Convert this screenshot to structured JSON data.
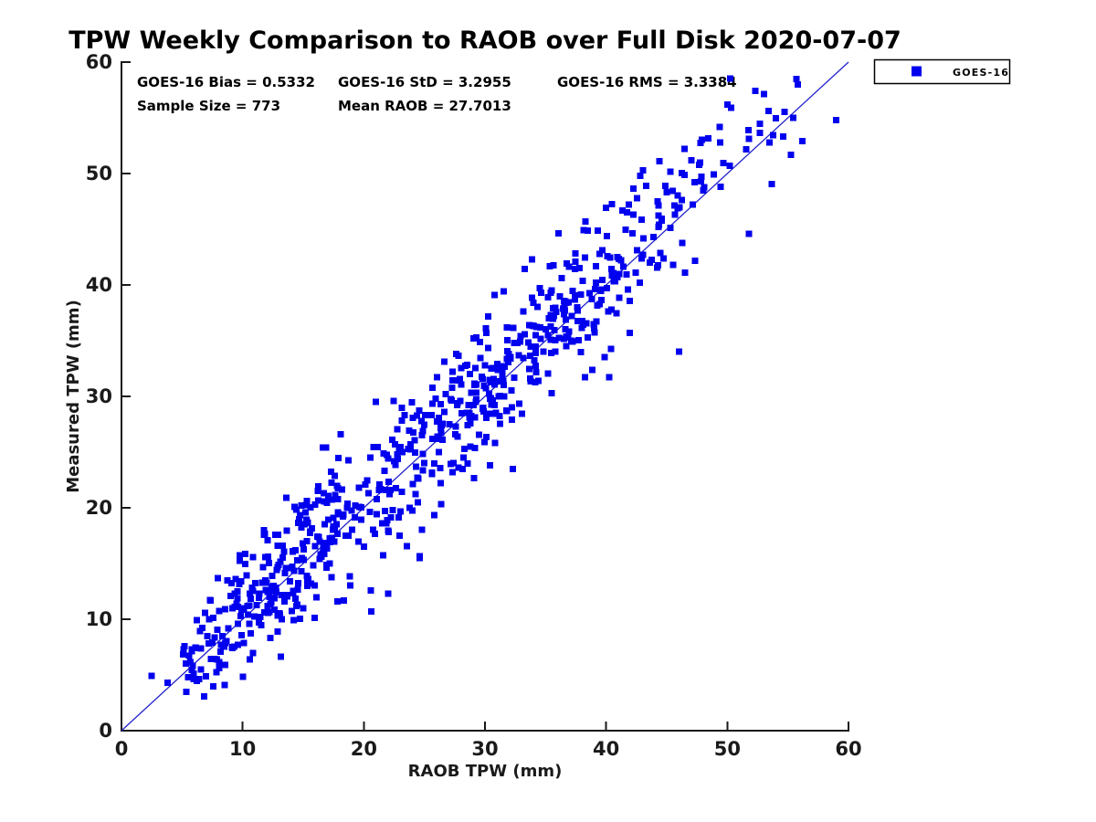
{
  "chart_data": {
    "type": "scatter",
    "title": "TPW Weekly Comparison to RAOB over Full Disk 2020-07-07",
    "xlabel": "RAOB TPW (mm)",
    "ylabel": "Measured TPW (mm)",
    "xlim": [
      0,
      60
    ],
    "ylim": [
      0,
      60
    ],
    "xticks": [
      0,
      10,
      20,
      30,
      40,
      50,
      60
    ],
    "yticks": [
      0,
      10,
      20,
      30,
      40,
      50,
      60
    ],
    "grid": false,
    "legend": {
      "label": "GOES-16",
      "position": "outside-top-right",
      "marker": "square",
      "marker_color": "#0000ee"
    },
    "stats": {
      "bias": 0.5332,
      "std": 3.2955,
      "rms": 3.3384,
      "sample_size": 773,
      "mean_raob": 27.7013
    },
    "stats_text": {
      "bias": "GOES-16 Bias = 0.5332",
      "std": "GOES-16 StD = 3.2955",
      "rms": "GOES-16 RMS = 3.3384",
      "sample_size": "Sample Size = 773",
      "mean_raob": "Mean RAOB = 27.7013"
    },
    "identity_line": {
      "x": [
        0,
        60
      ],
      "y": [
        0,
        60
      ],
      "color": "#2222cc"
    },
    "series": [
      {
        "name": "GOES-16",
        "marker": "square",
        "color": "#0000ee",
        "n_points": 773,
        "points_observed": [
          [
            2.5,
            4.9
          ],
          [
            3.8,
            4.3
          ],
          [
            5.2,
            7.6
          ],
          [
            8.5,
            4.1
          ],
          [
            9.0,
            12.1
          ],
          [
            13.6,
            20.9
          ],
          [
            16.2,
            21.5
          ],
          [
            18.1,
            26.6
          ],
          [
            20.6,
            10.7
          ],
          [
            22.0,
            12.3
          ],
          [
            24.6,
            15.5
          ],
          [
            21.0,
            29.5
          ],
          [
            24.8,
            26.5
          ],
          [
            30.4,
            29.8
          ],
          [
            33.9,
            42.3
          ],
          [
            35.2,
            38.9
          ],
          [
            38.3,
            45.7
          ],
          [
            40.1,
            42.6
          ],
          [
            42.8,
            49.8
          ],
          [
            44.4,
            51.1
          ],
          [
            46.0,
            34.0
          ],
          [
            48.9,
            49.9
          ],
          [
            49.4,
            52.8
          ],
          [
            50.0,
            56.2
          ],
          [
            50.3,
            55.9
          ],
          [
            51.8,
            44.6
          ],
          [
            52.3,
            57.4
          ],
          [
            53.4,
            55.6
          ],
          [
            54.6,
            53.3
          ],
          [
            55.8,
            58.0
          ],
          [
            56.2,
            52.9
          ],
          [
            59.0,
            54.8
          ]
        ],
        "generator": {
          "seed": 20200707,
          "bias": 0.5332,
          "noise_std": 3.2955,
          "x_min": 2.2,
          "x_max": 59.3
        }
      }
    ]
  },
  "colors": {
    "marker": "#0000ee",
    "line": "#2222cc",
    "axis": "#1a1a1a",
    "text": "#000000",
    "background": "#ffffff"
  }
}
